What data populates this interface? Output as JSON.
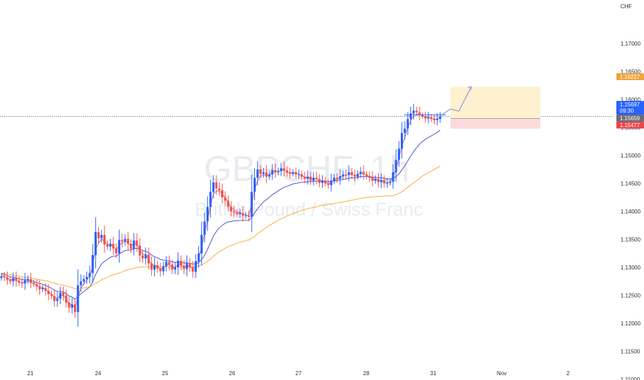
{
  "chart_data": {
    "type": "candlestick",
    "currency_label": "CHF",
    "watermark": {
      "symbol": "GBPCHF, 1h",
      "name": "British Pound / Swiss Franc"
    },
    "y_axis": {
      "range": [
        1.10988,
        1.17776
      ],
      "ticks": [
        "1.17000",
        "1.16500",
        "1.16000",
        "1.15500",
        "1.15000",
        "1.14500",
        "1.14000",
        "1.13500",
        "1.13000",
        "1.12500",
        "1.12000",
        "1.11500",
        "1.11000"
      ]
    },
    "x_axis": {
      "labels": [
        "21",
        "24",
        "25",
        "26",
        "27",
        "28",
        "31",
        "Nov",
        "2"
      ]
    },
    "price_tags": [
      {
        "label": "1.16227",
        "sublabel": "",
        "value": 1.16227,
        "color": "#f0a43a"
      },
      {
        "label": "1.15697",
        "sublabel": "09:30",
        "value": 1.15697,
        "color": "#2962ff"
      },
      {
        "label": "1.15659",
        "sublabel": "",
        "value": 1.15659,
        "color": "#6b6e76"
      },
      {
        "label": "1.15477",
        "sublabel": "",
        "value": 1.15477,
        "color": "#e8474b"
      }
    ],
    "current_price": 1.15697,
    "trade_setup": {
      "entry": 1.15659,
      "target": 1.16227,
      "stop": 1.15477,
      "resistance": 1.15725
    },
    "colors": {
      "up": "#2962ff",
      "down": "#ef5350",
      "ema_fast": "#e05a6a",
      "ema_mid": "#3f3fc8",
      "ema_slow": "#f5a623"
    },
    "series": [
      {
        "name": "",
        "values": [
          1.1284,
          1.1282,
          1.1278,
          1.1275,
          1.1281,
          1.1276,
          1.1273,
          1.1271,
          1.1277,
          1.1279,
          1.1273,
          1.127,
          1.1266,
          1.1261,
          1.1263,
          1.1258,
          1.1252,
          1.1249,
          1.124,
          1.1244,
          1.1255,
          1.125,
          1.1237,
          1.1228,
          1.1234,
          1.122,
          1.1268,
          1.1275,
          1.1279,
          1.1283,
          1.129,
          1.1322,
          1.1363,
          1.1352,
          1.1358,
          1.1341,
          1.1337,
          1.1342,
          1.1334,
          1.1325,
          1.1349,
          1.1346,
          1.1351,
          1.1342,
          1.1333,
          1.1348,
          1.1339,
          1.1321,
          1.1316,
          1.1323,
          1.1307,
          1.1296,
          1.1304,
          1.1298,
          1.1293,
          1.1302,
          1.131,
          1.1305,
          1.1296,
          1.13,
          1.1312,
          1.1303,
          1.1297,
          1.1307,
          1.13,
          1.1292,
          1.1311,
          1.1325,
          1.1358,
          1.1382,
          1.1408,
          1.1435,
          1.1452,
          1.1441,
          1.1438,
          1.1425,
          1.1419,
          1.1408,
          1.14,
          1.1398,
          1.1395,
          1.1397,
          1.1392,
          1.1393,
          1.139,
          1.1435,
          1.146,
          1.1475,
          1.1467,
          1.147,
          1.1462,
          1.1466,
          1.1474,
          1.147,
          1.1472,
          1.1477,
          1.1473,
          1.1469,
          1.1467,
          1.147,
          1.1466,
          1.1466,
          1.1462,
          1.1458,
          1.1462,
          1.1455,
          1.146,
          1.1458,
          1.1451,
          1.1455,
          1.145,
          1.1447,
          1.1455,
          1.146,
          1.1458,
          1.1463,
          1.1466,
          1.1465,
          1.147,
          1.1465,
          1.1462,
          1.1467,
          1.1471,
          1.1466,
          1.1463,
          1.146,
          1.1455,
          1.1458,
          1.1452,
          1.1456,
          1.145,
          1.1451,
          1.1453,
          1.147,
          1.1492,
          1.1512,
          1.154,
          1.1548,
          1.1565,
          1.1575,
          1.158,
          1.1577,
          1.1572,
          1.157,
          1.1566,
          1.1568,
          1.1565,
          1.1563,
          1.1565,
          1.157
        ]
      },
      {
        "name": "",
        "values": [
          1.1287,
          1.1284,
          1.1281,
          1.1278,
          1.1279,
          1.1277,
          1.1274,
          1.1272,
          1.1274,
          1.1275,
          1.1273,
          1.1271,
          1.1268,
          1.1264,
          1.1264,
          1.1261,
          1.1256,
          1.1253,
          1.1246,
          1.1245,
          1.125,
          1.125,
          1.1243,
          1.1235,
          1.1234,
          1.1227,
          1.1248,
          1.1262,
          1.1271,
          1.1277,
          1.1284,
          1.1303,
          1.1333,
          1.1343,
          1.1351,
          1.1346,
          1.1341,
          1.1342,
          1.1338,
          1.1331,
          1.134,
          1.1343,
          1.1347,
          1.1344,
          1.1338,
          1.1343,
          1.1341,
          1.1331,
          1.1323,
          1.1323,
          1.1315,
          1.1305,
          1.1304,
          1.1301,
          1.1297,
          1.1299,
          1.1305,
          1.1305,
          1.13,
          1.13,
          1.1306,
          1.1304,
          1.13,
          1.1304,
          1.1302,
          1.1297,
          1.1304,
          1.1315,
          1.1337,
          1.136,
          1.1384,
          1.141,
          1.1431,
          1.1436,
          1.1437,
          1.1431,
          1.1425,
          1.1416,
          1.1408,
          1.1403,
          1.1399,
          1.1398,
          1.1395,
          1.1394,
          1.1392,
          1.1414,
          1.1437,
          1.1456,
          1.1462,
          1.1466,
          1.1464,
          1.1465,
          1.147,
          1.147,
          1.1471,
          1.1474,
          1.1474,
          1.1471,
          1.1469,
          1.1469,
          1.1468,
          1.1467,
          1.1464,
          1.1461,
          1.1461,
          1.1458,
          1.1459,
          1.1458,
          1.1454,
          1.1455,
          1.1452,
          1.1449,
          1.1452,
          1.1456,
          1.1457,
          1.146,
          1.1463,
          1.1464,
          1.1467,
          1.1466,
          1.1464,
          1.1466,
          1.1468,
          1.1467,
          1.1465,
          1.1462,
          1.1458,
          1.1458,
          1.1455,
          1.1455,
          1.1452,
          1.1451,
          1.1452,
          1.1461,
          1.1476,
          1.1494,
          1.1517,
          1.1532,
          1.1549,
          1.1562,
          1.1571,
          1.1574,
          1.1573,
          1.1571,
          1.1568,
          1.1568,
          1.1566,
          1.1565,
          1.1565,
          1.1568
        ]
      },
      {
        "name": "",
        "values": [
          1.1289,
          1.1287,
          1.1285,
          1.1283,
          1.1283,
          1.1281,
          1.128,
          1.1278,
          1.1278,
          1.1277,
          1.1276,
          1.1275,
          1.1273,
          1.1271,
          1.127,
          1.1268,
          1.1265,
          1.1263,
          1.1259,
          1.1257,
          1.1257,
          1.1256,
          1.1253,
          1.1249,
          1.1247,
          1.1243,
          1.1248,
          1.1253,
          1.1257,
          1.1261,
          1.1265,
          1.1274,
          1.1287,
          1.1297,
          1.1306,
          1.1311,
          1.1314,
          1.1318,
          1.132,
          1.132,
          1.1324,
          1.1327,
          1.133,
          1.1331,
          1.1331,
          1.1333,
          1.1334,
          1.1332,
          1.133,
          1.1329,
          1.1326,
          1.1322,
          1.1319,
          1.1317,
          1.1314,
          1.1313,
          1.1312,
          1.1312,
          1.131,
          1.1309,
          1.1309,
          1.1309,
          1.1308,
          1.1308,
          1.1307,
          1.1306,
          1.1306,
          1.1308,
          1.1314,
          1.1322,
          1.1332,
          1.1344,
          1.1356,
          1.1364,
          1.1371,
          1.1375,
          1.1379,
          1.1381,
          1.1382,
          1.1383,
          1.1383,
          1.1384,
          1.1384,
          1.1384,
          1.1384,
          1.1389,
          1.1397,
          1.1405,
          1.1411,
          1.1417,
          1.1421,
          1.1425,
          1.143,
          1.1433,
          1.1437,
          1.144,
          1.1443,
          1.1445,
          1.1447,
          1.1449,
          1.145,
          1.1451,
          1.1452,
          1.1452,
          1.1453,
          1.1453,
          1.1454,
          1.1454,
          1.1454,
          1.1454,
          1.1454,
          1.1453,
          1.1454,
          1.1454,
          1.1455,
          1.1456,
          1.1457,
          1.1458,
          1.1459,
          1.146,
          1.146,
          1.1461,
          1.1462,
          1.1462,
          1.1462,
          1.1462,
          1.1461,
          1.1461,
          1.146,
          1.146,
          1.1459,
          1.1458,
          1.1458,
          1.1459,
          1.1462,
          1.1467,
          1.1474,
          1.1482,
          1.149,
          1.1499,
          1.1507,
          1.1514,
          1.152,
          1.1525,
          1.1529,
          1.1532,
          1.1535,
          1.1538,
          1.1541,
          1.1545
        ]
      },
      {
        "name": "",
        "values": [
          1.129,
          1.1289,
          1.1288,
          1.1287,
          1.1286,
          1.1285,
          1.1284,
          1.1283,
          1.1282,
          1.1282,
          1.1281,
          1.128,
          1.1279,
          1.1278,
          1.1277,
          1.1276,
          1.1275,
          1.1273,
          1.1272,
          1.127,
          1.1269,
          1.1268,
          1.1267,
          1.1265,
          1.1264,
          1.1262,
          1.1262,
          1.1263,
          1.1263,
          1.1264,
          1.1265,
          1.1268,
          1.1271,
          1.1274,
          1.1278,
          1.128,
          1.1282,
          1.1285,
          1.1287,
          1.1288,
          1.129,
          1.1292,
          1.1294,
          1.1296,
          1.1297,
          1.1298,
          1.13,
          1.13,
          1.1301,
          1.1301,
          1.1301,
          1.1301,
          1.1301,
          1.1301,
          1.1301,
          1.1301,
          1.1301,
          1.1301,
          1.1301,
          1.1301,
          1.1301,
          1.1301,
          1.1301,
          1.1301,
          1.1301,
          1.1301,
          1.1301,
          1.1302,
          1.1304,
          1.1307,
          1.1311,
          1.1315,
          1.132,
          1.1324,
          1.1328,
          1.1331,
          1.1334,
          1.1337,
          1.1339,
          1.1341,
          1.1343,
          1.1345,
          1.1346,
          1.1348,
          1.1349,
          1.1352,
          1.1355,
          1.136,
          1.1364,
          1.1368,
          1.1371,
          1.1375,
          1.1378,
          1.1381,
          1.1384,
          1.1387,
          1.1389,
          1.1392,
          1.1394,
          1.1396,
          1.1398,
          1.14,
          1.1402,
          1.1403,
          1.1405,
          1.1406,
          1.1407,
          1.1408,
          1.141,
          1.1411,
          1.1411,
          1.1412,
          1.1413,
          1.1414,
          1.1415,
          1.1416,
          1.1417,
          1.1418,
          1.1419,
          1.142,
          1.1421,
          1.1422,
          1.1423,
          1.1424,
          1.1425,
          1.1425,
          1.1426,
          1.1426,
          1.1427,
          1.1427,
          1.1427,
          1.1428,
          1.1428,
          1.1428,
          1.143,
          1.1432,
          1.1435,
          1.1439,
          1.1443,
          1.1447,
          1.1451,
          1.1455,
          1.1459,
          1.1463,
          1.1466,
          1.1469,
          1.1472,
          1.1475,
          1.1478,
          1.1481
        ]
      }
    ]
  }
}
